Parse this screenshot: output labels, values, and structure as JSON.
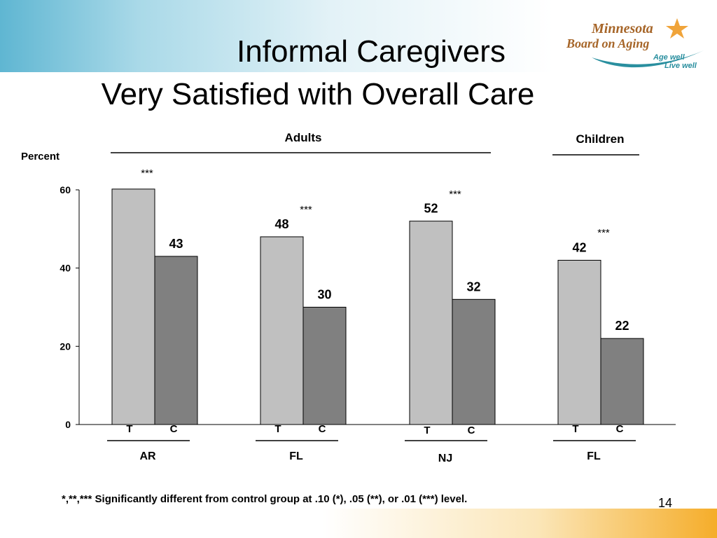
{
  "slide": {
    "title_line1": "Informal Caregivers",
    "title_line2": "Very Satisfied with Overall Care",
    "footnote": "*,**,*** Significantly different from control group at .10 (*), .05 (**), or .01 (***) level.",
    "page_number": "14"
  },
  "logo": {
    "line1": "Minnesota",
    "line2": "Board on Aging",
    "tagline1": "Age well",
    "tagline2": "Live well",
    "star_color": "#f0a43a",
    "text_color": "#a66528",
    "swoosh_color": "#2a8f9f"
  },
  "chart_data": {
    "type": "bar",
    "ylabel": "Percent",
    "ylim": [
      0,
      60
    ],
    "yticks": [
      0,
      20,
      40,
      60
    ],
    "grid": false,
    "series_colors": {
      "T": "#c0c0c0",
      "C": "#808080"
    },
    "section_labels": [
      {
        "label": "Adults",
        "groups": [
          0,
          1,
          2
        ]
      },
      {
        "label": "Children",
        "groups": [
          3
        ]
      }
    ],
    "groups": [
      {
        "state": "AR",
        "labels": [
          "T",
          "C"
        ],
        "values": [
          61,
          43
        ],
        "value_labels": [
          "",
          "43"
        ],
        "significance": "***"
      },
      {
        "state": "FL",
        "labels": [
          "T",
          "C"
        ],
        "values": [
          48,
          30
        ],
        "value_labels": [
          "48",
          "30"
        ],
        "significance": "***"
      },
      {
        "state": "NJ",
        "labels": [
          "T",
          "C"
        ],
        "values": [
          52,
          32
        ],
        "value_labels": [
          "52",
          "32"
        ],
        "significance": "***"
      },
      {
        "state": "FL",
        "labels": [
          "T",
          "C"
        ],
        "values": [
          42,
          22
        ],
        "value_labels": [
          "42",
          "22"
        ],
        "significance": "***"
      }
    ]
  }
}
